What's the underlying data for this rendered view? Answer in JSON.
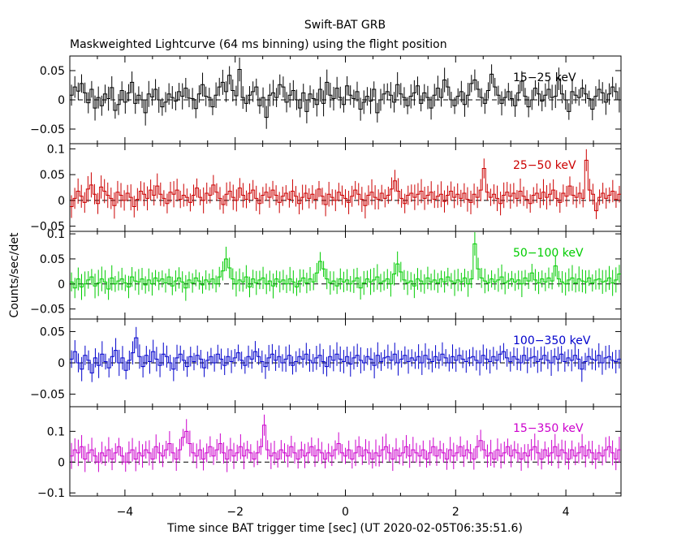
{
  "header": {
    "title": "Swift-BAT GRB",
    "subtitle": "Maskweighted Lightcurve (64 ms binning) using the flight position"
  },
  "chart_data": {
    "type": "line",
    "xlabel": "Time since BAT trigger time [sec] (UT 2020-02-05T06:35:51.6)",
    "ylabel": "Counts/sec/det",
    "xlim": [
      -5,
      5
    ],
    "x_ticks": [
      -4,
      -2,
      0,
      2,
      4
    ],
    "x_tick_labels": [
      "−4",
      "−2",
      "0",
      "2",
      "4"
    ],
    "bin_width_sec": 0.064,
    "zero_line": "dashed",
    "panels": [
      {
        "name": "15−25 keV",
        "color": "#000000",
        "ylim": [
          -0.075,
          0.075
        ],
        "y_ticks": [
          -0.05,
          0,
          0.05
        ],
        "y_tick_labels": [
          "−0.05",
          "0",
          "0.05"
        ],
        "values": [
          0.008,
          0.022,
          0.015,
          0.028,
          0.012,
          -0.005,
          0.018,
          -0.014,
          0.004,
          -0.01,
          0.01,
          0.002,
          0.021,
          -0.018,
          -0.008,
          0.016,
          -0.004,
          0.012,
          0.03,
          -0.006,
          0.008,
          0.0,
          -0.022,
          0.01,
          0.005,
          0.018,
          0.0,
          -0.012,
          -0.004,
          0.01,
          0.004,
          -0.002,
          0.014,
          0.006,
          0.02,
          0.003,
          0.002,
          -0.015,
          0.01,
          0.026,
          0.006,
          0.004,
          -0.012,
          0.008,
          0.022,
          0.03,
          0.014,
          0.042,
          0.016,
          0.007,
          0.052,
          0.004,
          -0.006,
          0.008,
          0.014,
          0.022,
          -0.01,
          0.004,
          -0.03,
          0.008,
          0.012,
          0.004,
          0.026,
          0.022,
          -0.004,
          0.008,
          0.016,
          0.0,
          -0.014,
          0.012,
          -0.02,
          0.01,
          0.002,
          -0.008,
          0.018,
          -0.006,
          0.03,
          0.008,
          0.002,
          0.02,
          0.004,
          -0.008,
          0.024,
          0.008,
          0.002,
          0.014,
          -0.016,
          -0.004,
          0.006,
          -0.002,
          0.018,
          -0.022,
          0.0,
          0.01,
          0.014,
          0.008,
          -0.004,
          0.026,
          0.01,
          0.004,
          -0.01,
          0.006,
          0.012,
          0.024,
          -0.006,
          0.012,
          0.004,
          -0.014,
          0.008,
          0.02,
          0.004,
          0.034,
          0.022,
          0.0,
          -0.01,
          0.006,
          0.014,
          -0.008,
          0.008,
          0.028,
          0.034,
          0.018,
          0.004,
          -0.006,
          0.016,
          0.044,
          0.022,
          0.008,
          -0.006,
          0.004,
          0.014,
          0.002,
          -0.01,
          0.012,
          0.032,
          0.006,
          -0.012,
          0.0,
          0.02,
          0.01,
          -0.002,
          0.008,
          0.018,
          0.004,
          0.006,
          0.036,
          0.01,
          0.0,
          -0.02,
          0.014,
          0.008,
          0.004,
          0.02,
          0.01,
          0.002,
          -0.016,
          0.006,
          0.018,
          0.012,
          -0.004,
          0.01,
          0.022,
          0.014,
          0.0
        ]
      },
      {
        "name": "25−50 keV",
        "color": "#cc0000",
        "ylim": [
          -0.06,
          0.11
        ],
        "y_ticks": [
          -0.05,
          0,
          0.05,
          0.1
        ],
        "y_tick_labels": [
          "−0.05",
          "0",
          "0.05",
          "0.1"
        ],
        "values": [
          -0.012,
          0.004,
          0.018,
          0.008,
          -0.004,
          0.022,
          0.03,
          0.012,
          -0.006,
          0.026,
          0.018,
          0.01,
          0.004,
          -0.01,
          0.016,
          0.01,
          0.0,
          0.014,
          0.006,
          -0.012,
          0.002,
          0.018,
          0.012,
          0.004,
          0.02,
          0.01,
          0.028,
          0.012,
          0.004,
          -0.006,
          0.016,
          0.012,
          0.02,
          0.002,
          0.01,
          0.006,
          -0.004,
          0.01,
          0.024,
          0.006,
          0.0,
          0.014,
          0.01,
          0.03,
          0.016,
          0.004,
          -0.008,
          0.012,
          0.018,
          0.006,
          0.0,
          0.024,
          0.01,
          0.002,
          0.014,
          0.02,
          0.004,
          -0.006,
          0.01,
          0.016,
          0.006,
          0.02,
          0.01,
          -0.004,
          0.008,
          0.014,
          0.002,
          0.018,
          0.008,
          -0.006,
          0.006,
          0.014,
          0.004,
          0.012,
          0.002,
          0.022,
          0.008,
          -0.008,
          0.012,
          0.006,
          0.0,
          0.016,
          0.01,
          0.004,
          -0.004,
          0.008,
          0.02,
          0.012,
          0.002,
          -0.01,
          0.01,
          0.016,
          0.006,
          0.002,
          0.014,
          0.004,
          0.01,
          0.022,
          0.038,
          0.018,
          0.004,
          -0.006,
          0.01,
          0.014,
          0.006,
          0.012,
          0.018,
          0.004,
          0.01,
          0.016,
          0.002,
          0.008,
          0.012,
          -0.002,
          0.01,
          0.018,
          0.006,
          0.012,
          0.004,
          0.014,
          0.002,
          -0.004,
          0.012,
          0.006,
          0.02,
          0.062,
          0.016,
          0.006,
          0.012,
          0.004,
          -0.006,
          0.01,
          0.016,
          0.008,
          0.014,
          0.004,
          0.018,
          0.008,
          0.002,
          -0.006,
          0.01,
          0.014,
          0.004,
          0.016,
          0.006,
          0.012,
          0.02,
          0.004,
          -0.004,
          0.014,
          0.008,
          0.028,
          0.01,
          0.006,
          0.014,
          0.004,
          0.078,
          0.02,
          0.012,
          -0.02,
          0.006,
          0.014,
          0.004,
          0.01,
          0.018,
          0.002,
          0.012
        ]
      },
      {
        "name": "50−100 keV",
        "color": "#00cc00",
        "ylim": [
          -0.07,
          0.105
        ],
        "y_ticks": [
          -0.05,
          0,
          0.05,
          0.1
        ],
        "y_tick_labels": [
          "−0.05",
          "0",
          "0.05",
          "0.1"
        ],
        "values": [
          0.004,
          -0.008,
          0.01,
          -0.006,
          0.0,
          0.008,
          0.014,
          -0.004,
          0.002,
          0.01,
          0.004,
          -0.01,
          0.012,
          0.0,
          0.006,
          0.01,
          0.002,
          -0.006,
          0.014,
          0.006,
          0.004,
          0.01,
          -0.002,
          0.008,
          0.0,
          0.012,
          0.006,
          0.01,
          0.002,
          0.014,
          -0.004,
          0.006,
          0.012,
          0.004,
          -0.008,
          0.008,
          0.002,
          0.012,
          0.006,
          -0.002,
          0.008,
          0.004,
          0.01,
          0.0,
          0.014,
          0.026,
          0.05,
          0.032,
          0.01,
          0.0,
          0.008,
          0.004,
          0.014,
          -0.006,
          0.01,
          0.002,
          0.008,
          0.012,
          0.0,
          0.006,
          -0.004,
          0.01,
          0.004,
          0.008,
          0.0,
          0.01,
          0.004,
          -0.006,
          0.006,
          0.012,
          0.002,
          0.01,
          0.004,
          0.022,
          0.045,
          0.03,
          0.01,
          0.002,
          0.006,
          -0.004,
          0.01,
          0.004,
          0.008,
          0.0,
          0.006,
          0.012,
          -0.008,
          0.002,
          0.01,
          0.004,
          0.008,
          0.014,
          0.002,
          0.006,
          0.01,
          0.0,
          0.02,
          0.04,
          0.024,
          0.008,
          0.002,
          0.006,
          -0.004,
          0.01,
          0.006,
          0.0,
          0.012,
          0.004,
          0.008,
          0.002,
          0.01,
          0.004,
          0.014,
          0.006,
          0.002,
          0.008,
          0.004,
          0.012,
          0.0,
          0.01,
          0.08,
          0.03,
          0.012,
          0.006,
          0.002,
          0.01,
          0.004,
          0.008,
          0.014,
          0.002,
          0.006,
          0.01,
          0.004,
          0.008,
          0.0,
          0.012,
          0.006,
          0.022,
          0.008,
          0.002,
          0.01,
          0.004,
          0.012,
          0.006,
          0.036,
          0.01,
          0.004,
          0.0,
          0.008,
          0.012,
          0.002,
          0.01,
          0.006,
          0.004,
          0.012,
          0.002,
          0.008,
          0.01,
          0.004,
          0.006,
          0.012,
          0.002,
          0.008,
          0.02
        ]
      },
      {
        "name": "100−350 keV",
        "color": "#0000cc",
        "ylim": [
          -0.07,
          0.07
        ],
        "y_ticks": [
          -0.05,
          0,
          0.05
        ],
        "y_tick_labels": [
          "−0.05",
          "0",
          "0.05"
        ],
        "values": [
          0.006,
          0.018,
          0.0,
          -0.01,
          0.012,
          0.004,
          -0.016,
          0.008,
          -0.004,
          0.014,
          0.002,
          -0.008,
          0.01,
          0.02,
          0.0,
          0.008,
          -0.012,
          0.004,
          0.016,
          0.04,
          0.01,
          -0.006,
          0.012,
          0.002,
          0.018,
          0.006,
          -0.004,
          0.014,
          0.01,
          0.0,
          -0.01,
          0.008,
          0.014,
          0.004,
          -0.006,
          0.01,
          0.002,
          0.012,
          0.006,
          -0.008,
          0.004,
          0.01,
          0.0,
          0.014,
          0.006,
          -0.004,
          0.01,
          0.002,
          0.008,
          0.016,
          0.004,
          -0.004,
          0.01,
          0.006,
          0.018,
          0.01,
          0.002,
          -0.006,
          0.008,
          0.014,
          0.004,
          0.01,
          0.0,
          0.006,
          0.012,
          -0.004,
          0.002,
          0.01,
          0.006,
          0.014,
          0.004,
          0.0,
          0.008,
          0.012,
          0.002,
          -0.006,
          0.01,
          0.004,
          0.014,
          0.006,
          0.002,
          0.01,
          -0.002,
          0.008,
          0.012,
          0.004,
          0.0,
          0.01,
          0.006,
          -0.004,
          0.012,
          0.002,
          0.008,
          0.01,
          0.004,
          0.014,
          0.0,
          0.006,
          0.012,
          0.002,
          0.008,
          0.004,
          0.01,
          0.0,
          0.012,
          0.006,
          0.002,
          0.01,
          0.004,
          0.014,
          0.008,
          0.0,
          0.01,
          0.004,
          0.012,
          0.006,
          0.002,
          0.008,
          0.01,
          0.004,
          0.0,
          0.012,
          0.006,
          0.002,
          0.01,
          0.004,
          0.014,
          0.018,
          0.008,
          0.002,
          0.01,
          0.006,
          0.0,
          0.012,
          0.004,
          0.008,
          0.01,
          0.002,
          0.006,
          0.012,
          0.004,
          0.0,
          0.01,
          0.006,
          0.014,
          0.002,
          0.008,
          0.004,
          0.012,
          0.006,
          -0.01,
          0.002,
          0.01,
          0.006,
          0.004,
          0.012,
          0.0,
          0.008,
          0.01,
          0.004,
          0.002,
          0.006
        ]
      },
      {
        "name": "15−350 keV",
        "color": "#cc00cc",
        "ylim": [
          -0.11,
          0.18
        ],
        "y_ticks": [
          -0.1,
          0,
          0.1
        ],
        "y_tick_labels": [
          "−0.1",
          "0",
          "0.1"
        ],
        "values": [
          0.02,
          0.04,
          0.03,
          0.05,
          0.01,
          0.03,
          0.04,
          0.02,
          0.0,
          0.03,
          0.02,
          0.04,
          0.01,
          0.03,
          0.05,
          0.02,
          0.0,
          0.03,
          0.04,
          0.01,
          0.03,
          0.02,
          0.04,
          0.03,
          0.01,
          0.05,
          0.03,
          0.02,
          0.04,
          0.06,
          0.03,
          0.01,
          0.04,
          0.08,
          0.1,
          0.06,
          0.03,
          0.02,
          0.04,
          0.01,
          0.03,
          0.05,
          0.02,
          0.04,
          0.06,
          0.03,
          0.01,
          0.04,
          0.02,
          0.03,
          0.05,
          0.02,
          0.04,
          0.03,
          0.01,
          0.03,
          0.05,
          0.12,
          0.04,
          0.02,
          0.03,
          0.01,
          0.04,
          0.03,
          0.02,
          0.05,
          0.03,
          0.01,
          0.04,
          0.02,
          0.03,
          0.05,
          0.02,
          0.04,
          0.03,
          0.01,
          0.03,
          0.02,
          0.04,
          0.06,
          0.03,
          0.02,
          0.04,
          0.01,
          0.03,
          0.05,
          0.02,
          0.04,
          0.03,
          0.01,
          0.03,
          0.02,
          0.04,
          0.05,
          0.03,
          0.01,
          0.04,
          0.02,
          0.03,
          0.05,
          0.02,
          0.04,
          0.03,
          0.02,
          0.04,
          0.01,
          0.03,
          0.05,
          0.02,
          0.04,
          0.03,
          0.01,
          0.04,
          0.02,
          0.03,
          0.05,
          0.02,
          0.04,
          0.03,
          0.01,
          0.05,
          0.07,
          0.04,
          0.02,
          0.03,
          0.01,
          0.04,
          0.02,
          0.03,
          0.05,
          0.02,
          0.04,
          0.03,
          0.01,
          0.03,
          0.02,
          0.04,
          0.05,
          0.03,
          0.01,
          0.04,
          0.02,
          0.03,
          0.05,
          0.02,
          0.04,
          0.03,
          0.01,
          0.04,
          0.02,
          0.03,
          0.05,
          0.02,
          0.04,
          0.03,
          0.01,
          0.03,
          0.02,
          0.04,
          0.05,
          0.03,
          0.01,
          0.04
        ]
      }
    ]
  }
}
